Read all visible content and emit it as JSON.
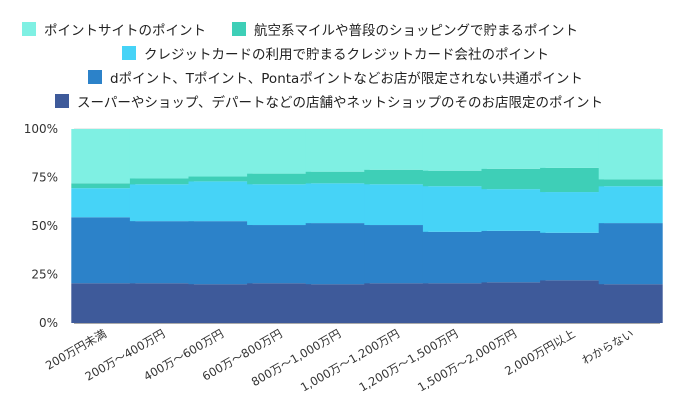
{
  "chart_data": {
    "type": "bar",
    "stacked": true,
    "percent": true,
    "title": "",
    "xlabel": "",
    "ylabel": "",
    "ylim": [
      0,
      100
    ],
    "yticks": [
      "0%",
      "25%",
      "50%",
      "75%",
      "100%"
    ],
    "grid": true,
    "legend_position": "top",
    "categories": [
      "200万円未満",
      "200万～400万円",
      "400万～600万円",
      "600万～800万円",
      "800万～1,000万円",
      "1,000万～1,200万円",
      "1,200万～1,500万円",
      "1,500万～2,000万円",
      "2,000万円以上",
      "わからない"
    ],
    "series": [
      {
        "name": "スーパーやショップ、デパートなどの店舗やネットショップのそのお店限定のポイント",
        "color": "#3e5a9a",
        "values": [
          20.5,
          20.5,
          20,
          20.5,
          20,
          20.5,
          20.5,
          21,
          22,
          20
        ]
      },
      {
        "name": "dポイント、Tポイント、Pontaポイントなどお店が限定されない共通ポイント",
        "color": "#2c82c9",
        "values": [
          34,
          32,
          32.5,
          30,
          31.5,
          30,
          26.5,
          26.5,
          24.5,
          31.5
        ]
      },
      {
        "name": "クレジットカードの利用で貯まるクレジットカード会社のポイント",
        "color": "#46d3f7",
        "values": [
          15,
          19,
          20.5,
          21,
          20.5,
          21,
          23.5,
          21.5,
          21,
          19
        ]
      },
      {
        "name": "航空系マイルや普段のショッピングで貯まるポイント",
        "color": "#3ecfb7",
        "values": [
          2.5,
          3,
          2.5,
          5.5,
          6,
          7.5,
          8,
          10.5,
          12.5,
          3.5
        ]
      },
      {
        "name": "ポイントサイトのポイント",
        "color": "#7ff0e3",
        "values": [
          28,
          25.5,
          24.5,
          23,
          22,
          21,
          21.5,
          20.5,
          20,
          26
        ]
      }
    ],
    "colors": {
      "grid": "#d9d9d9",
      "axis": "#555555"
    }
  }
}
